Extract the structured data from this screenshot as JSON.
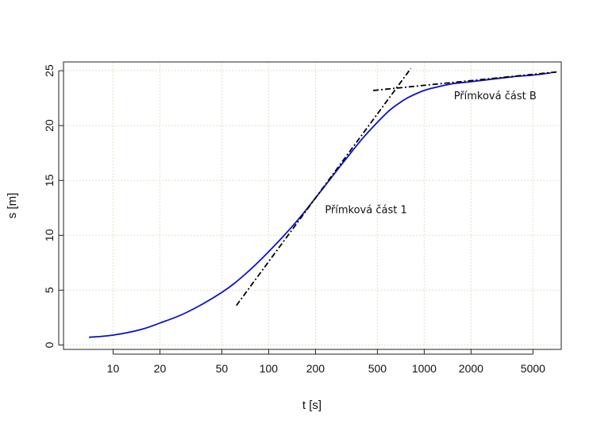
{
  "chart_data": {
    "type": "line",
    "xlabel": "t [s]",
    "ylabel": "s [m]",
    "x_scale": "log",
    "xlim": [
      4.8,
      7600
    ],
    "ylim": [
      -0.4,
      25.8
    ],
    "x_ticks": [
      10,
      20,
      50,
      100,
      200,
      500,
      1000,
      2000,
      5000
    ],
    "x_tick_labels": [
      "10",
      "20",
      "50",
      "100",
      "200",
      "500",
      "1000",
      "2000",
      "5000"
    ],
    "y_ticks": [
      0,
      5,
      10,
      15,
      20,
      25
    ],
    "y_tick_labels": [
      "0",
      "5",
      "10",
      "15",
      "20",
      "25"
    ],
    "grid": true,
    "series": [
      {
        "kind": "curve",
        "color": "#1010c8",
        "x": [
          7,
          10,
          15,
          20,
          30,
          50,
          70,
          100,
          150,
          200,
          300,
          400,
          500,
          600,
          700,
          800,
          1000,
          1200,
          1500,
          2000,
          3000,
          4000,
          5000,
          6500
        ],
        "y": [
          0.7,
          0.9,
          1.4,
          2.0,
          3.0,
          4.8,
          6.4,
          8.5,
          11.2,
          13.4,
          16.6,
          18.8,
          20.3,
          21.4,
          22.1,
          22.6,
          23.2,
          23.5,
          23.8,
          24.0,
          24.3,
          24.5,
          24.6,
          24.8
        ]
      },
      {
        "kind": "tangent",
        "color": "#000000",
        "x": [
          62,
          820
        ],
        "y": [
          3.6,
          25.2
        ]
      },
      {
        "kind": "tangent",
        "color": "#000000",
        "x": [
          470,
          7300
        ],
        "y": [
          23.2,
          24.9
        ]
      }
    ],
    "annotations": [
      {
        "text": "Přímková část 1",
        "x": 230,
        "y": 12.0
      },
      {
        "text": "Přímková část B",
        "x": 1550,
        "y": 22.4
      }
    ]
  }
}
